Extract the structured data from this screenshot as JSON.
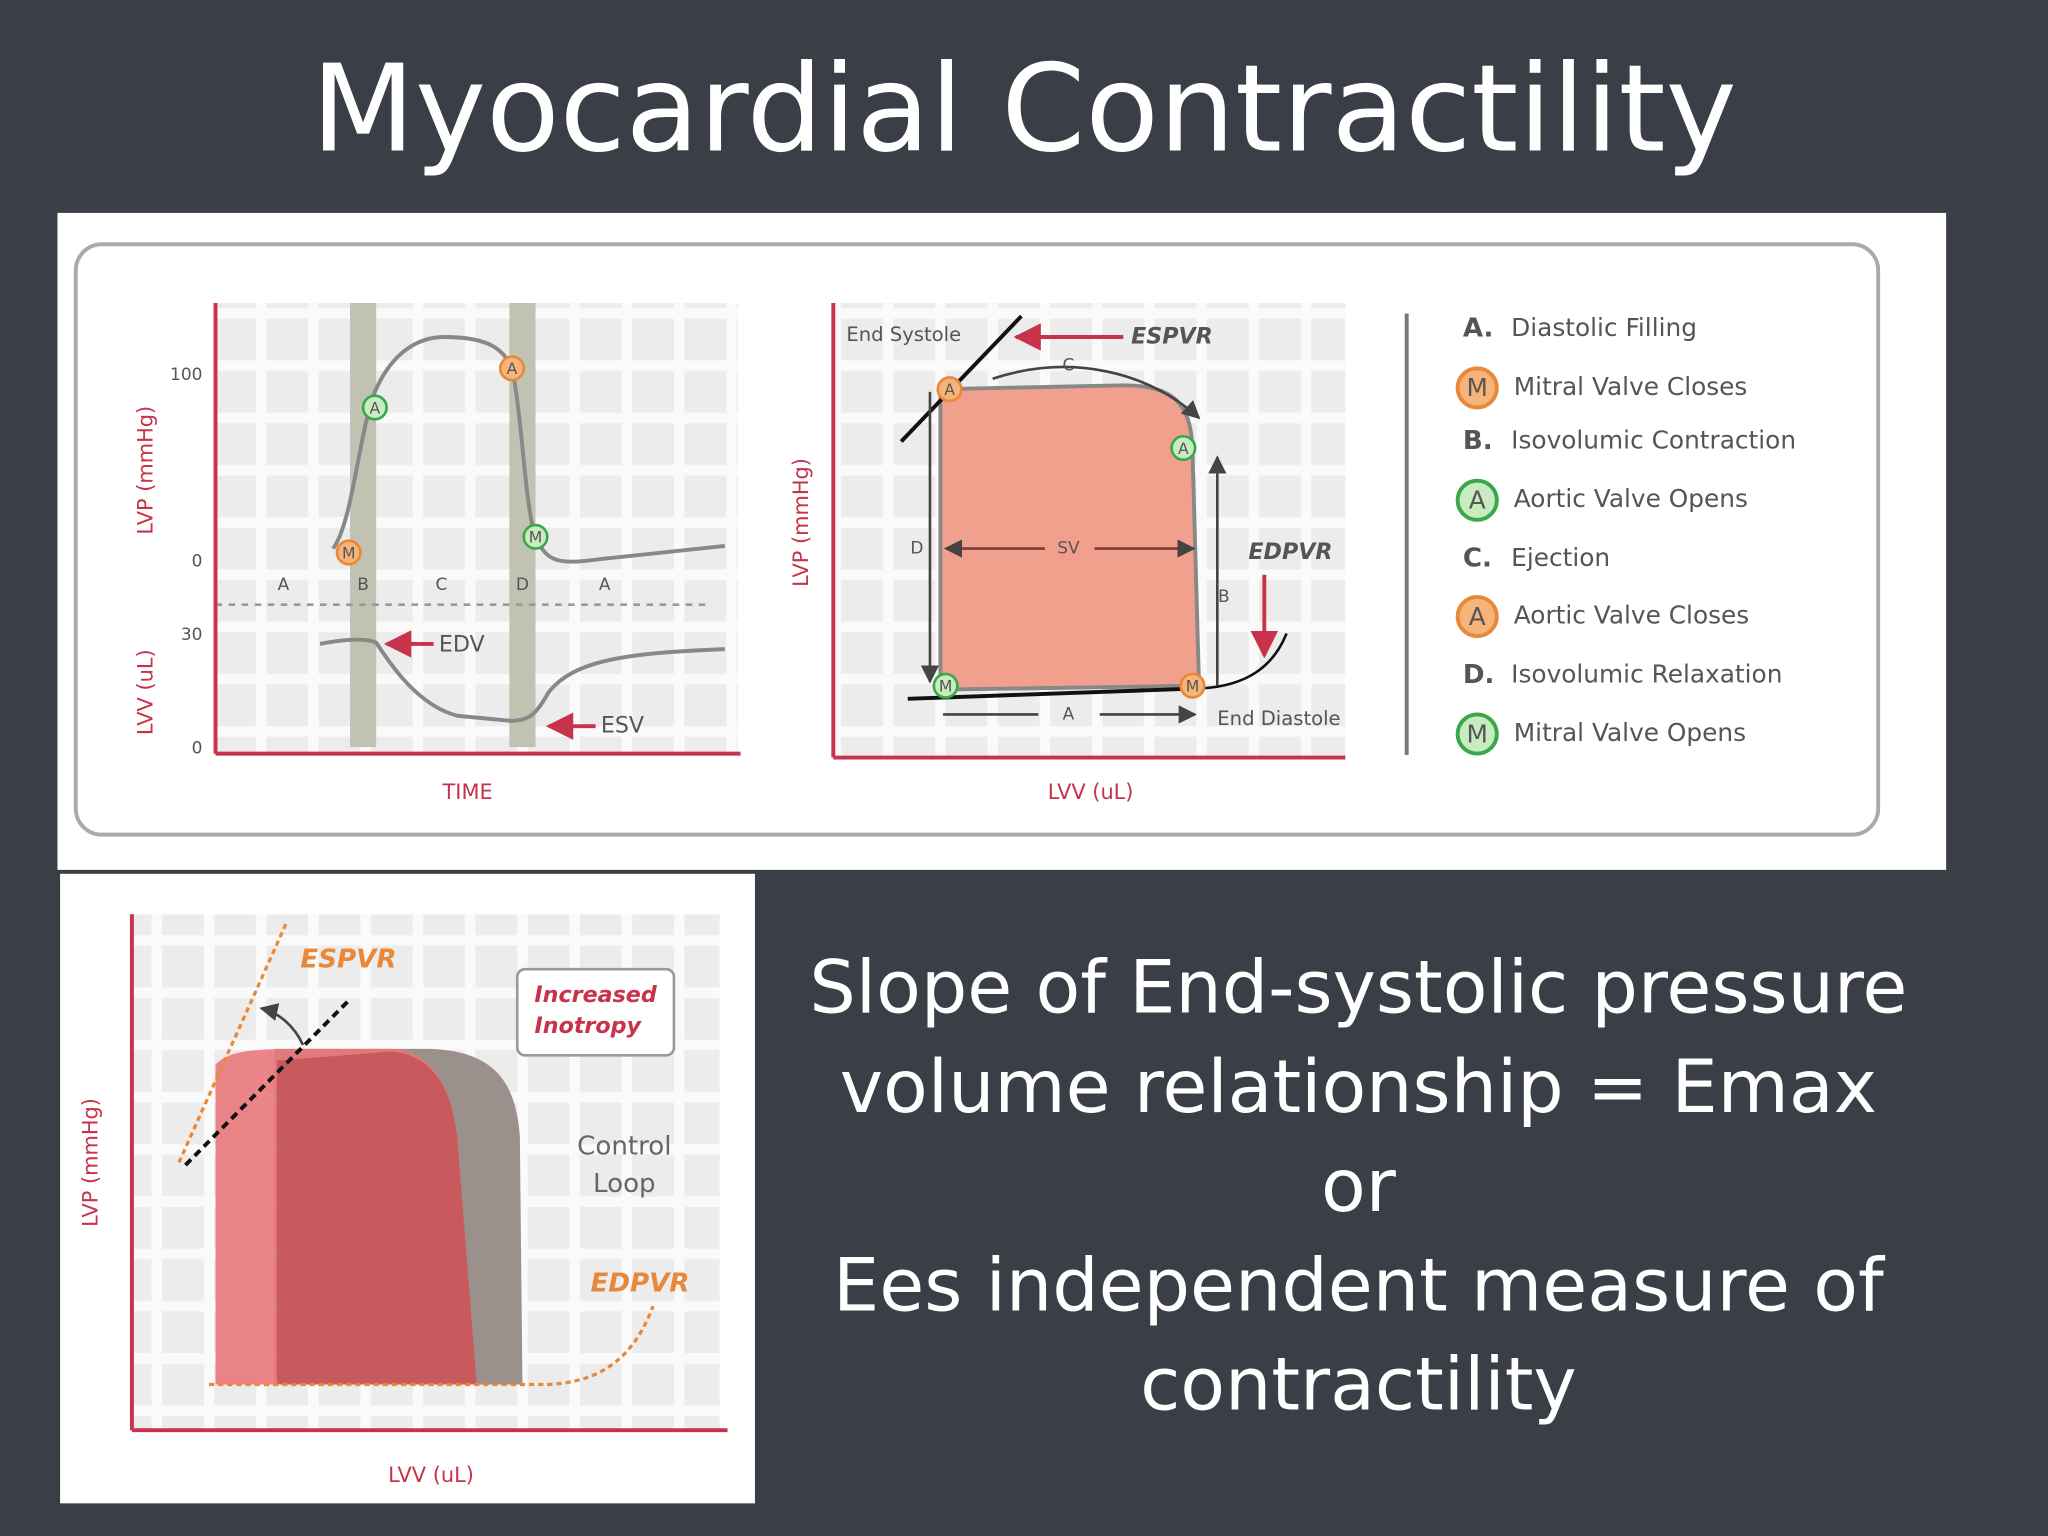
{
  "title": "Myocardial Contractility",
  "figure_top": {
    "left_chart": {
      "y_label_pressure": "LVP (mmHg)",
      "y_label_volume": "LVV (uL)",
      "pressure_ticks": [
        "100",
        "0"
      ],
      "volume_ticks": [
        "30",
        "0"
      ],
      "x_label": "TIME",
      "phases": [
        "A",
        "B",
        "C",
        "D",
        "A"
      ],
      "edv": "EDV",
      "esv": "ESV",
      "markers": [
        "M",
        "A",
        "A",
        "M"
      ]
    },
    "middle_chart": {
      "y_label": "LVP (mmHg)",
      "x_label": "LVV (uL)",
      "end_systole": "End Systole",
      "espvr": "ESPVR",
      "edpvr": "EDPVR",
      "end_diastole": "End Diastole",
      "sv": "SV",
      "phases": [
        "A",
        "B",
        "C",
        "D"
      ],
      "markers": [
        "A",
        "A",
        "M",
        "M"
      ]
    },
    "legend": [
      {
        "key": "A.",
        "label": "Diastolic Filling"
      },
      {
        "marker": "M",
        "label": "Mitral Valve Closes"
      },
      {
        "key": "B.",
        "label": "Isovolumic Contraction"
      },
      {
        "marker": "A",
        "label": "Aortic Valve Opens"
      },
      {
        "key": "C.",
        "label": "Ejection"
      },
      {
        "marker": "A",
        "label": "Aortic Valve Closes"
      },
      {
        "key": "D.",
        "label": "Isovolumic Relaxation"
      },
      {
        "marker": "M",
        "label": "Mitral Valve Opens"
      }
    ]
  },
  "figure_bottom": {
    "espvr": "ESPVR",
    "box": [
      "Increased",
      "Inotropy"
    ],
    "control": [
      "Control",
      "Loop"
    ],
    "edpvr": "EDPVR",
    "y_label": "LVP (mmHg)",
    "x_label": "LVV (uL)"
  },
  "body_text": [
    "Slope of End-systolic pressure",
    "volume relationship = Emax",
    "or",
    "Ees independent measure of",
    "contractility"
  ]
}
